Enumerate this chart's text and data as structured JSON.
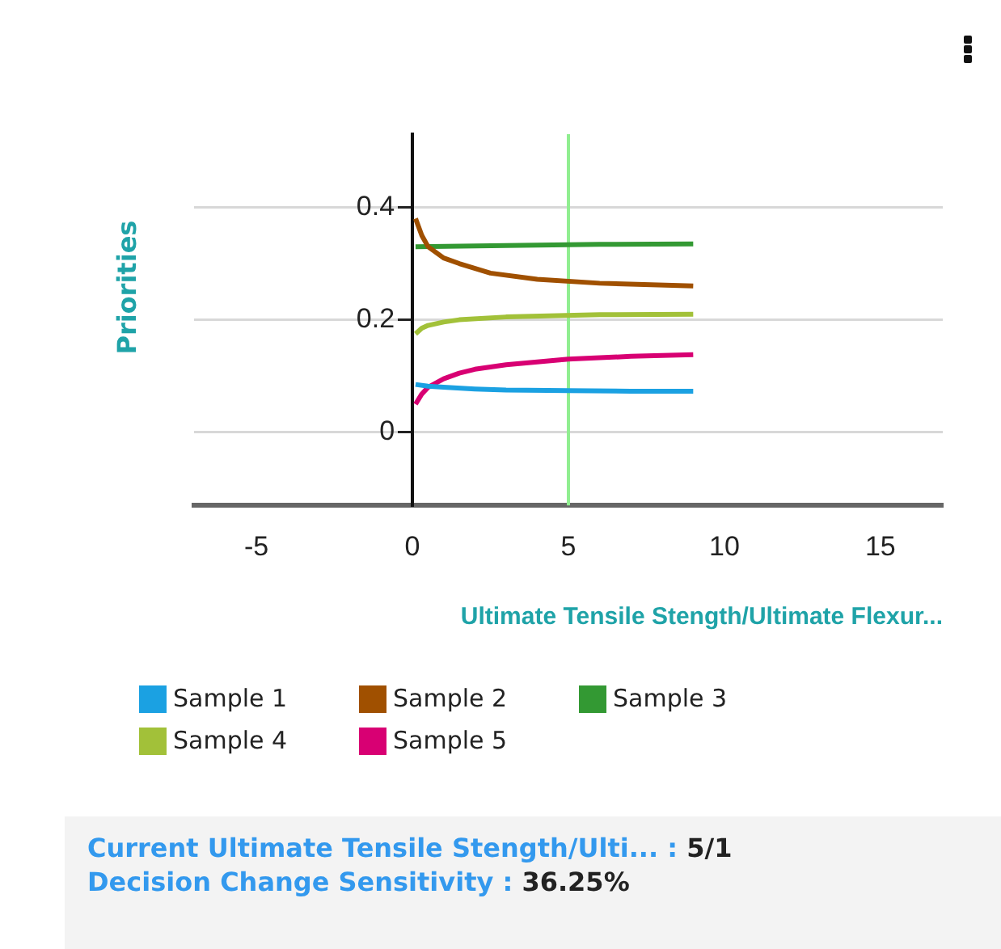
{
  "chart_data": {
    "type": "line",
    "ylabel": "Priorities",
    "xlabel": "Ultimate Tensile Stength/Ultimate Flexur...",
    "xlim": [
      -7,
      17
    ],
    "xticks": [
      -5,
      0,
      5,
      10,
      15
    ],
    "ylim": [
      -0.13,
      0.53
    ],
    "yticks": [
      0,
      0.2,
      0.4
    ],
    "grid": "y",
    "legend": "bottom",
    "marker": "none",
    "series": [
      {
        "name": "Sample 1",
        "color": "#1ba1e2",
        "x": [
          0.1,
          0.5,
          1,
          2,
          3,
          5,
          7,
          9
        ],
        "values": [
          0.085,
          0.082,
          0.08,
          0.077,
          0.075,
          0.074,
          0.073,
          0.073
        ]
      },
      {
        "name": "Sample 2",
        "color": "#a05000",
        "x": [
          0.1,
          0.3,
          0.5,
          1,
          1.5,
          2.5,
          4,
          6,
          9
        ],
        "values": [
          0.38,
          0.35,
          0.33,
          0.31,
          0.3,
          0.283,
          0.272,
          0.265,
          0.26
        ]
      },
      {
        "name": "Sample 3",
        "color": "#339933",
        "x": [
          0.1,
          3,
          6,
          9
        ],
        "values": [
          0.33,
          0.332,
          0.334,
          0.335
        ]
      },
      {
        "name": "Sample 4",
        "color": "#a2c139",
        "x": [
          0.1,
          0.3,
          0.5,
          1,
          1.5,
          3,
          6,
          9
        ],
        "values": [
          0.175,
          0.185,
          0.19,
          0.196,
          0.2,
          0.205,
          0.209,
          0.21
        ]
      },
      {
        "name": "Sample 5",
        "color": "#d80073",
        "x": [
          0.1,
          0.3,
          0.5,
          1,
          1.5,
          2,
          3,
          5,
          7,
          9
        ],
        "values": [
          0.05,
          0.068,
          0.08,
          0.095,
          0.105,
          0.112,
          0.12,
          0.13,
          0.135,
          0.138
        ]
      }
    ],
    "ref_lines": [
      {
        "axis": "x",
        "value": 5,
        "color": "#90ee90"
      }
    ],
    "annotations": [
      "Current Ultimate Tensile Stength/Ulti... :  5/1",
      "Decision Change Sensitivity : 36.25%"
    ]
  }
}
